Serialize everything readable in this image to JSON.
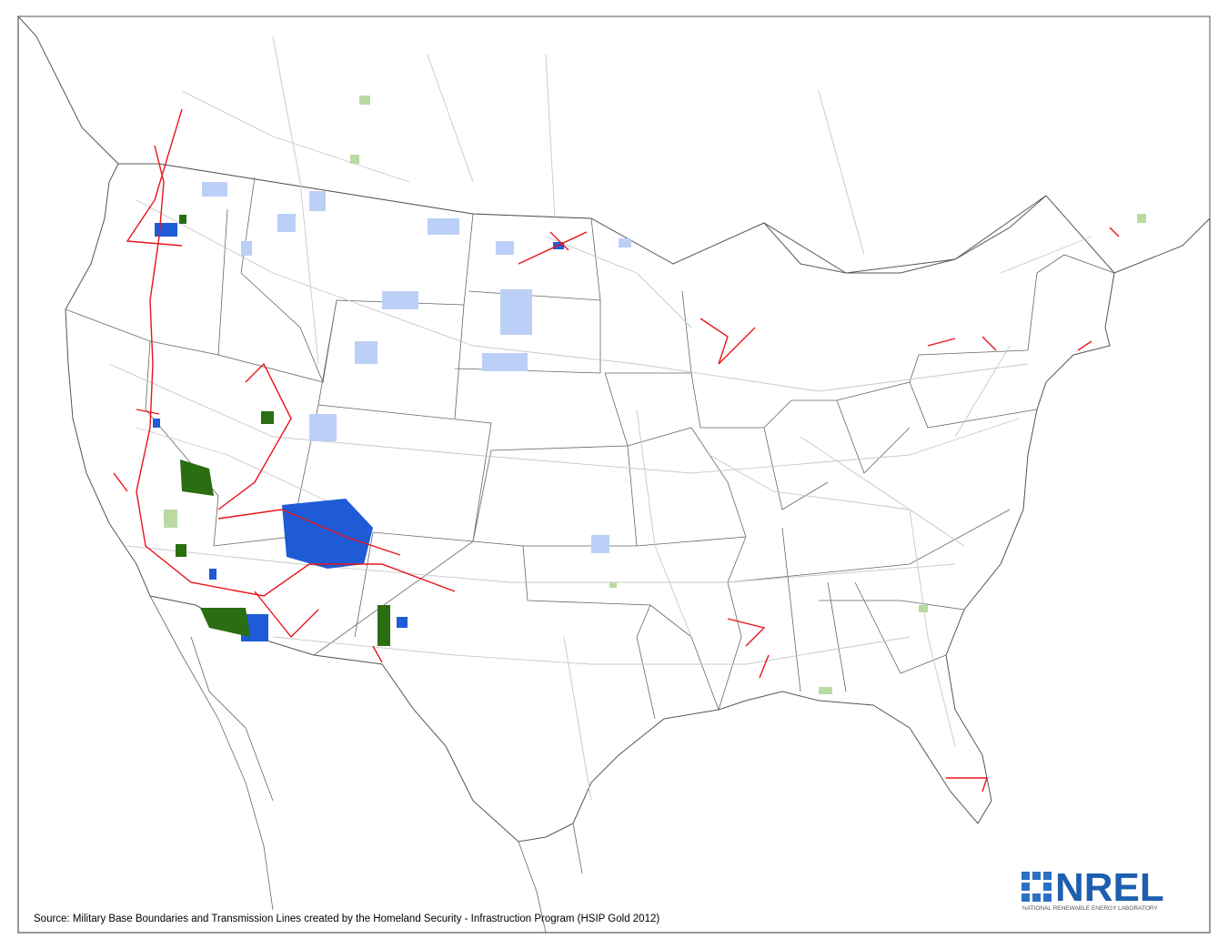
{
  "source": "Source: Military Base Boundaries and Transmission Lines created by the Homeland Security - Infrastruction Program (HSIP Gold 2012)",
  "logo": {
    "name": "NREL",
    "subtitle": "NATIONAL RENEWABLE ENERGY LABORATORY"
  }
}
